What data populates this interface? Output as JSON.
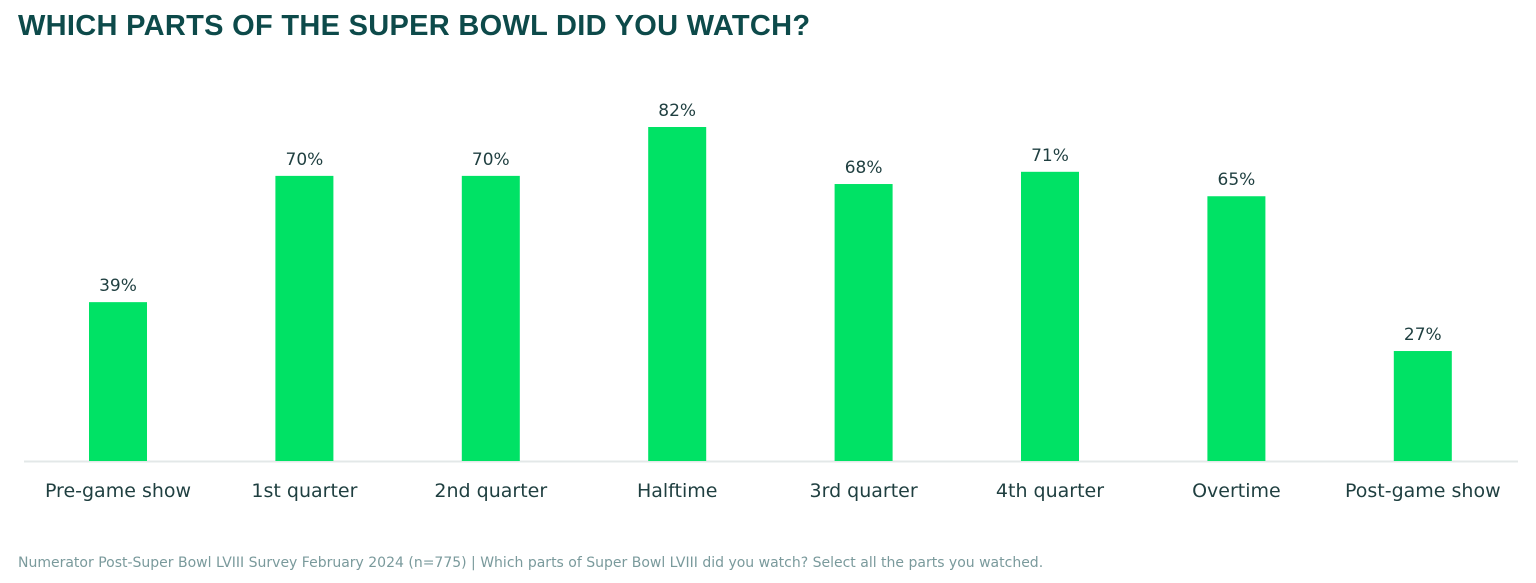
{
  "chart_data": {
    "type": "bar",
    "title": "WHICH PARTS OF THE SUPER BOWL DID YOU WATCH?",
    "categories": [
      "Pre-game show",
      "1st quarter",
      "2nd quarter",
      "Halftime",
      "3rd quarter",
      "4th quarter",
      "Overtime",
      "Post-game show"
    ],
    "values": [
      39,
      70,
      70,
      82,
      68,
      71,
      65,
      27
    ],
    "value_labels": [
      "39%",
      "70%",
      "70%",
      "82%",
      "68%",
      "71%",
      "65%",
      "27%"
    ],
    "unit": "%",
    "xlabel": "",
    "ylabel": "",
    "ylim": [
      0,
      82
    ],
    "grid": false,
    "legend": "none",
    "colors": {
      "bar": "#00e265",
      "title": "#0d4a4a",
      "text": "#1f3f40",
      "axis": "#e3e8e8"
    }
  },
  "footer": "Numerator Post-Super Bowl LVIII Survey February 2024 (n=775) | Which parts of Super Bowl LVIII did you watch? Select all the parts you watched."
}
